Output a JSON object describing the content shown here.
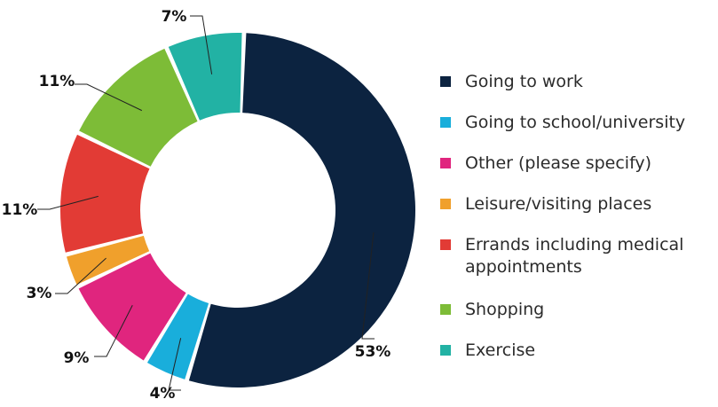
{
  "chart_data": {
    "type": "pie",
    "variant": "donut",
    "title": "",
    "categories": [
      "Going to work",
      "Going to school/university",
      "Other (please specify)",
      "Leisure/visiting places",
      "Errands including medical appointments",
      "Shopping",
      "Exercise"
    ],
    "values": [
      53,
      4,
      9,
      3,
      11,
      11,
      7
    ],
    "value_labels": [
      "53%",
      "4%",
      "9%",
      "3%",
      "11%",
      "11%",
      "7%"
    ],
    "unit": "%",
    "colors": [
      "#0c2340",
      "#19aedb",
      "#e0257e",
      "#f0a02c",
      "#e23b35",
      "#7dbc37",
      "#22b2a4"
    ],
    "legend": {
      "position": "right",
      "items": [
        {
          "label": "Going to work",
          "color": "#0c2340"
        },
        {
          "label": "Going to school/university",
          "color": "#19aedb"
        },
        {
          "label": "Other (please specify)",
          "color": "#e0257e"
        },
        {
          "label": "Leisure/visiting places",
          "color": "#f0a02c"
        },
        {
          "label": "Errands including medical appointments",
          "color": "#e23b35"
        },
        {
          "label": "Shopping",
          "color": "#7dbc37"
        },
        {
          "label": "Exercise",
          "color": "#22b2a4"
        }
      ]
    }
  }
}
